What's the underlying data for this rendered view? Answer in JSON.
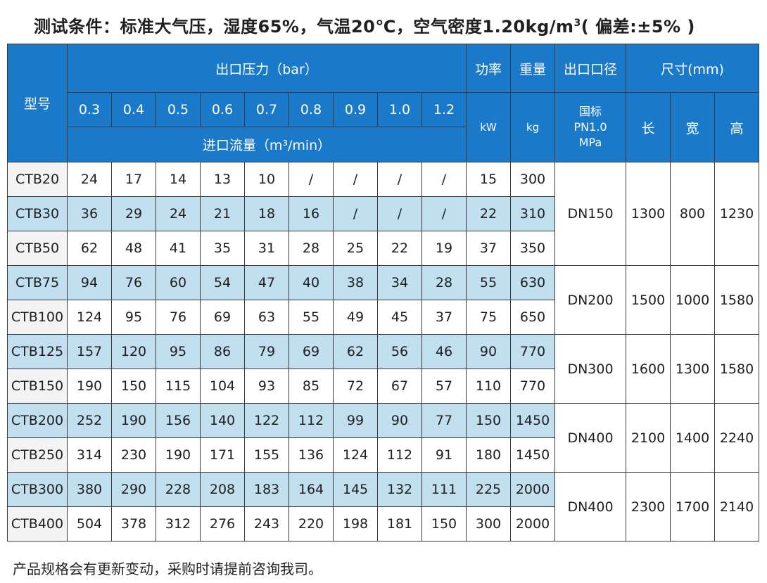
{
  "title": {
    "main": "测试条件：标准大气压，湿度65%，气温20℃，空气密度1.20kg/m",
    "sup": "3",
    "tail": "( 偏差:±5% )"
  },
  "header": {
    "model": "型号",
    "outlet_pressure": "出口压力（bar）",
    "pressures": [
      "0.3",
      "0.4",
      "0.5",
      "0.6",
      "0.7",
      "0.8",
      "0.9",
      "1.0",
      "1.2"
    ],
    "inlet_flow": "进口流量（m³/min）",
    "power": "功率",
    "power_unit": "kW",
    "weight": "重量",
    "weight_unit": "kg",
    "outlet_diameter": "出口口径",
    "standard_line1": "国标",
    "standard_line2": "PN1.0",
    "standard_line3": "MPa",
    "size": "尺寸(mm)",
    "length": "长",
    "width": "宽",
    "height": "高"
  },
  "rows": [
    {
      "model": "CTB20",
      "flows": [
        "24",
        "17",
        "14",
        "13",
        "10",
        "/",
        "/",
        "/",
        "/"
      ],
      "power": "15",
      "weight": "300"
    },
    {
      "model": "CTB30",
      "flows": [
        "36",
        "29",
        "24",
        "21",
        "18",
        "16",
        "/",
        "/",
        "/"
      ],
      "power": "22",
      "weight": "310"
    },
    {
      "model": "CTB50",
      "flows": [
        "62",
        "48",
        "41",
        "35",
        "31",
        "28",
        "25",
        "22",
        "19"
      ],
      "power": "37",
      "weight": "350"
    },
    {
      "model": "CTB75",
      "flows": [
        "94",
        "76",
        "60",
        "54",
        "47",
        "40",
        "38",
        "34",
        "28"
      ],
      "power": "55",
      "weight": "630"
    },
    {
      "model": "CTB100",
      "flows": [
        "124",
        "95",
        "76",
        "69",
        "63",
        "55",
        "49",
        "45",
        "37"
      ],
      "power": "75",
      "weight": "650"
    },
    {
      "model": "CTB125",
      "flows": [
        "157",
        "120",
        "95",
        "86",
        "79",
        "69",
        "62",
        "56",
        "46"
      ],
      "power": "90",
      "weight": "770"
    },
    {
      "model": "CTB150",
      "flows": [
        "190",
        "150",
        "115",
        "104",
        "93",
        "85",
        "72",
        "67",
        "57"
      ],
      "power": "110",
      "weight": "770"
    },
    {
      "model": "CTB200",
      "flows": [
        "252",
        "190",
        "156",
        "140",
        "122",
        "112",
        "99",
        "90",
        "77"
      ],
      "power": "150",
      "weight": "1450"
    },
    {
      "model": "CTB250",
      "flows": [
        "314",
        "230",
        "190",
        "171",
        "155",
        "136",
        "124",
        "112",
        "91"
      ],
      "power": "180",
      "weight": "1450"
    },
    {
      "model": "CTB300",
      "flows": [
        "380",
        "290",
        "228",
        "208",
        "183",
        "164",
        "145",
        "132",
        "111"
      ],
      "power": "225",
      "weight": "2000"
    },
    {
      "model": "CTB400",
      "flows": [
        "504",
        "378",
        "312",
        "276",
        "243",
        "220",
        "198",
        "181",
        "150"
      ],
      "power": "300",
      "weight": "2000"
    }
  ],
  "groups": [
    {
      "diameter": "DN150",
      "length": "1300",
      "width": "800",
      "height": "1230"
    },
    {
      "diameter": "DN200",
      "length": "1500",
      "width": "1000",
      "height": "1580"
    },
    {
      "diameter": "DN300",
      "length": "1600",
      "width": "1300",
      "height": "1580"
    },
    {
      "diameter": "DN400",
      "length": "2100",
      "width": "1400",
      "height": "2240"
    },
    {
      "diameter": "DN400",
      "length": "2300",
      "width": "1700",
      "height": "2140"
    }
  ],
  "footer": "产品规格会有更新变动，采购时请提前咨询我司。",
  "colors": {
    "header_blue": "#1a7ac9",
    "row_blue": "#c2dfef",
    "border": "#3a3a3a"
  }
}
